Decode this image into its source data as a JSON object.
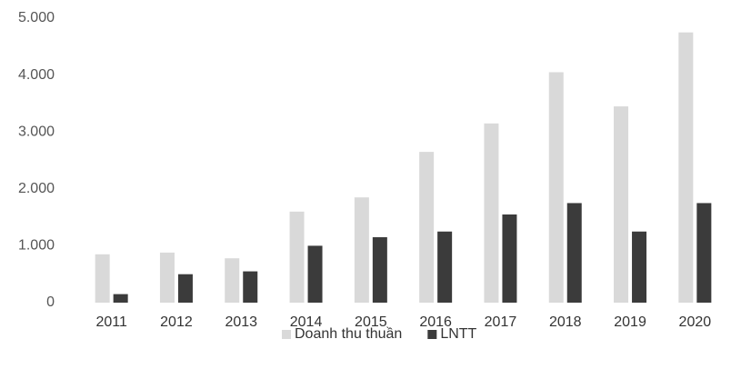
{
  "chart_data": {
    "type": "bar",
    "categories": [
      "2011",
      "2012",
      "2013",
      "2014",
      "2015",
      "2016",
      "2017",
      "2018",
      "2019",
      "2020"
    ],
    "series": [
      {
        "name": "Doanh thu thuần",
        "color": "#d9d9d9",
        "values": [
          850,
          880,
          780,
          1600,
          1850,
          2650,
          3150,
          4050,
          3450,
          4750
        ]
      },
      {
        "name": "LNTT",
        "color": "#3b3b3b",
        "values": [
          150,
          500,
          550,
          1000,
          1150,
          1250,
          1550,
          1750,
          1250,
          1750
        ]
      }
    ],
    "ylim": [
      0,
      5000
    ],
    "yticks": [
      0,
      {
        "value": 1000,
        "label": "1.000"
      },
      {
        "value": 2000,
        "label": "2.000"
      },
      {
        "value": 3000,
        "label": "3.000"
      },
      {
        "value": 4000,
        "label": "4.000"
      },
      {
        "value": 5000,
        "label": "5.000"
      }
    ],
    "grid": false,
    "legend": "bottom"
  }
}
